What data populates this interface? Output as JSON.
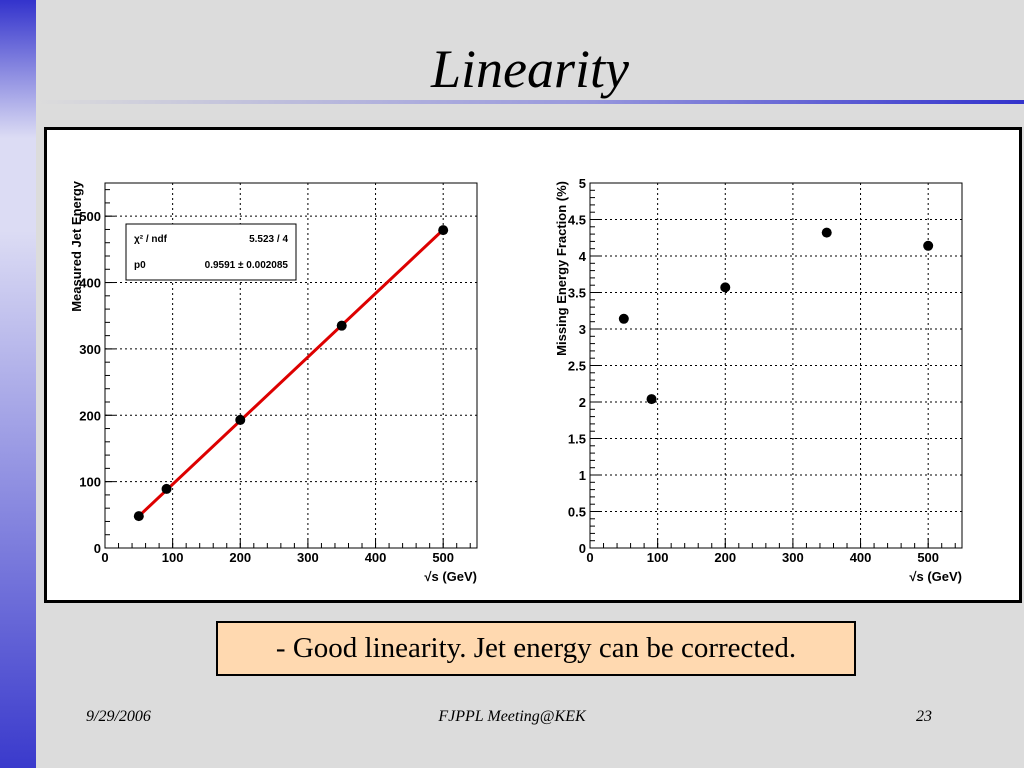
{
  "slide": {
    "title": "Linearity",
    "note": "- Good linearity. Jet energy can be corrected.",
    "footer_date": "9/29/2006",
    "footer_event": "FJPPL Meeting@KEK",
    "footer_page": "23"
  },
  "chart_data": [
    {
      "type": "scatter",
      "ylabel": "Measured Jet Energy",
      "xlabel": "√s (GeV)",
      "xlim": [
        0,
        550
      ],
      "ylim": [
        0,
        550
      ],
      "xticks": [
        0,
        100,
        200,
        300,
        400,
        500
      ],
      "yticks": [
        0,
        100,
        200,
        300,
        400,
        500
      ],
      "ytick_labels": [
        "0",
        "100",
        "200",
        "300",
        "400",
        "500"
      ],
      "grid": true,
      "points": {
        "x": [
          50,
          91,
          200,
          350,
          500
        ],
        "y": [
          48,
          89,
          193,
          335,
          479
        ]
      },
      "fit": {
        "slope": 0.9591,
        "x_range": [
          50,
          500
        ],
        "color": "#dd0000"
      },
      "stats": {
        "chi2_label": "χ² / ndf",
        "chi2_value": "5.523 / 4",
        "p0_label": "p0",
        "p0_value": "0.9591 ± 0.002085"
      }
    },
    {
      "type": "scatter",
      "ylabel": "Missing Energy Fraction (%)",
      "xlabel": "√s (GeV)",
      "xlim": [
        0,
        550
      ],
      "ylim": [
        0,
        5
      ],
      "xticks": [
        0,
        100,
        200,
        300,
        400,
        500
      ],
      "yticks": [
        0,
        0.5,
        1,
        1.5,
        2,
        2.5,
        3,
        3.5,
        4,
        4.5,
        5
      ],
      "ytick_labels": [
        "0",
        "0.5",
        "1",
        "1.5",
        "2",
        "2.5",
        "3",
        "3.5",
        "4",
        "4.5",
        "5"
      ],
      "grid": true,
      "points": {
        "x": [
          50,
          91,
          200,
          350,
          500
        ],
        "y": [
          3.14,
          2.04,
          3.57,
          4.32,
          4.14
        ]
      }
    }
  ]
}
